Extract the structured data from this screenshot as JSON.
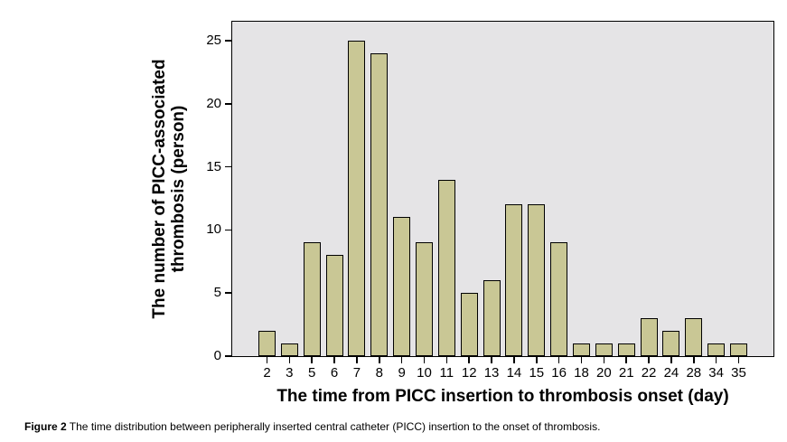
{
  "figure": {
    "caption_label": "Figure 2",
    "caption_text": " The time distribution between peripherally inserted central catheter (PICC) insertion to the onset of thrombosis."
  },
  "chart_data": {
    "type": "bar",
    "title": "",
    "categories": [
      "2",
      "3",
      "5",
      "6",
      "7",
      "8",
      "9",
      "10",
      "11",
      "12",
      "13",
      "14",
      "15",
      "16",
      "18",
      "20",
      "21",
      "22",
      "24",
      "28",
      "34",
      "35"
    ],
    "values": [
      2,
      1,
      9,
      8,
      25,
      24,
      11,
      9,
      14,
      5,
      6,
      12,
      12,
      9,
      1,
      1,
      1,
      3,
      2,
      3,
      1,
      1
    ],
    "xlabel": "The time from PICC insertion to thrombosis onset (day)",
    "ylabel": "The number of PICC-associated thrombosis (person)",
    "ylabel_lines": [
      "The number of PICC-associated",
      "thrombosis (person)"
    ],
    "yticks": [
      0,
      5,
      10,
      15,
      20,
      25
    ],
    "ylim": [
      0,
      26.5
    ],
    "grid": false,
    "legend": "none",
    "colors": {
      "bar_fill": "#c9c795",
      "bar_border": "#000000",
      "plot_bg": "#e5e4e6",
      "text": "#000000"
    }
  }
}
